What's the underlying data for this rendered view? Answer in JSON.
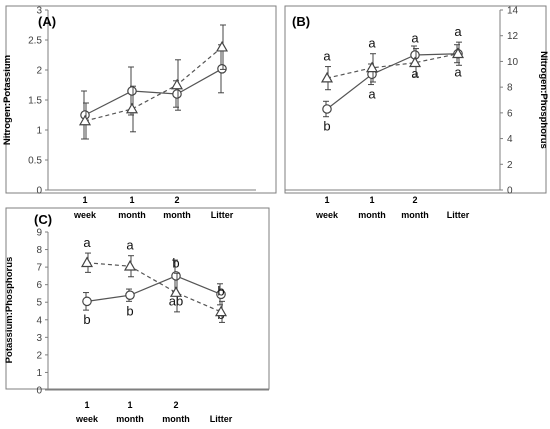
{
  "chart_data": [
    {
      "panel": "A",
      "type": "line",
      "title": "(A)",
      "ylabel": "Nitrogen:Potassium",
      "categories": [
        [
          "1",
          "week"
        ],
        [
          "1",
          "month"
        ],
        [
          "2",
          "month"
        ],
        [
          "Litter"
        ]
      ],
      "ylim": [
        0,
        3
      ],
      "yticks": [
        "0",
        "0.5",
        "1",
        "1.5",
        "2",
        "2.5",
        "3"
      ],
      "series": [
        {
          "marker": "circle",
          "line": "solid",
          "values": [
            1.25,
            1.65,
            1.6,
            2.02
          ],
          "err": [
            0.4,
            0.4,
            0.22,
            0.4
          ],
          "labels": [
            "",
            "",
            "",
            ""
          ]
        },
        {
          "marker": "triangle",
          "line": "dashed",
          "values": [
            1.15,
            1.35,
            1.75,
            2.38
          ],
          "err": [
            0.3,
            0.38,
            0.42,
            0.37
          ],
          "labels": [
            "",
            "",
            "",
            ""
          ]
        }
      ]
    },
    {
      "panel": "B",
      "type": "line",
      "title": "(B)",
      "ylabel": "Nitrogen:Phosphorus",
      "yaxis_side": "right",
      "categories": [
        [
          "1",
          "week"
        ],
        [
          "1",
          "month"
        ],
        [
          "2",
          "month"
        ],
        [
          "Litter"
        ]
      ],
      "ylim": [
        0,
        14
      ],
      "yticks": [
        "0",
        "2",
        "4",
        "6",
        "8",
        "10",
        "12",
        "14"
      ],
      "series": [
        {
          "marker": "circle",
          "line": "solid",
          "values": [
            6.3,
            9.0,
            10.5,
            10.6
          ],
          "err": [
            0.6,
            0.8,
            0.7,
            0.7
          ],
          "labels": [
            "b",
            "a",
            "a",
            "a"
          ]
        },
        {
          "marker": "triangle",
          "line": "dashed",
          "values": [
            8.7,
            9.5,
            9.9,
            10.6
          ],
          "err": [
            0.9,
            1.1,
            1.1,
            0.9
          ],
          "labels": [
            "a",
            "a",
            "a",
            "a"
          ]
        }
      ]
    },
    {
      "panel": "C",
      "type": "line",
      "title": "(C)",
      "ylabel": "Potassium:Phosphorus",
      "categories": [
        [
          "1",
          "week"
        ],
        [
          "1",
          "month"
        ],
        [
          "2",
          "month"
        ],
        [
          "Litter"
        ]
      ],
      "ylim": [
        0,
        9
      ],
      "yticks": [
        "0",
        "1",
        "2",
        "3",
        "4",
        "5",
        "6",
        "7",
        "8",
        "9"
      ],
      "series": [
        {
          "marker": "circle",
          "line": "solid",
          "values": [
            5.05,
            5.4,
            6.5,
            5.45
          ],
          "err": [
            0.5,
            0.35,
            0.9,
            0.6
          ],
          "labels": [
            "b",
            "b",
            "ab",
            "b"
          ]
        },
        {
          "marker": "triangle",
          "line": "dashed",
          "values": [
            7.25,
            7.05,
            5.55,
            4.45
          ],
          "err": [
            0.55,
            0.6,
            1.1,
            0.6
          ],
          "labels": [
            "a",
            "a",
            "b",
            "b"
          ]
        }
      ]
    }
  ]
}
